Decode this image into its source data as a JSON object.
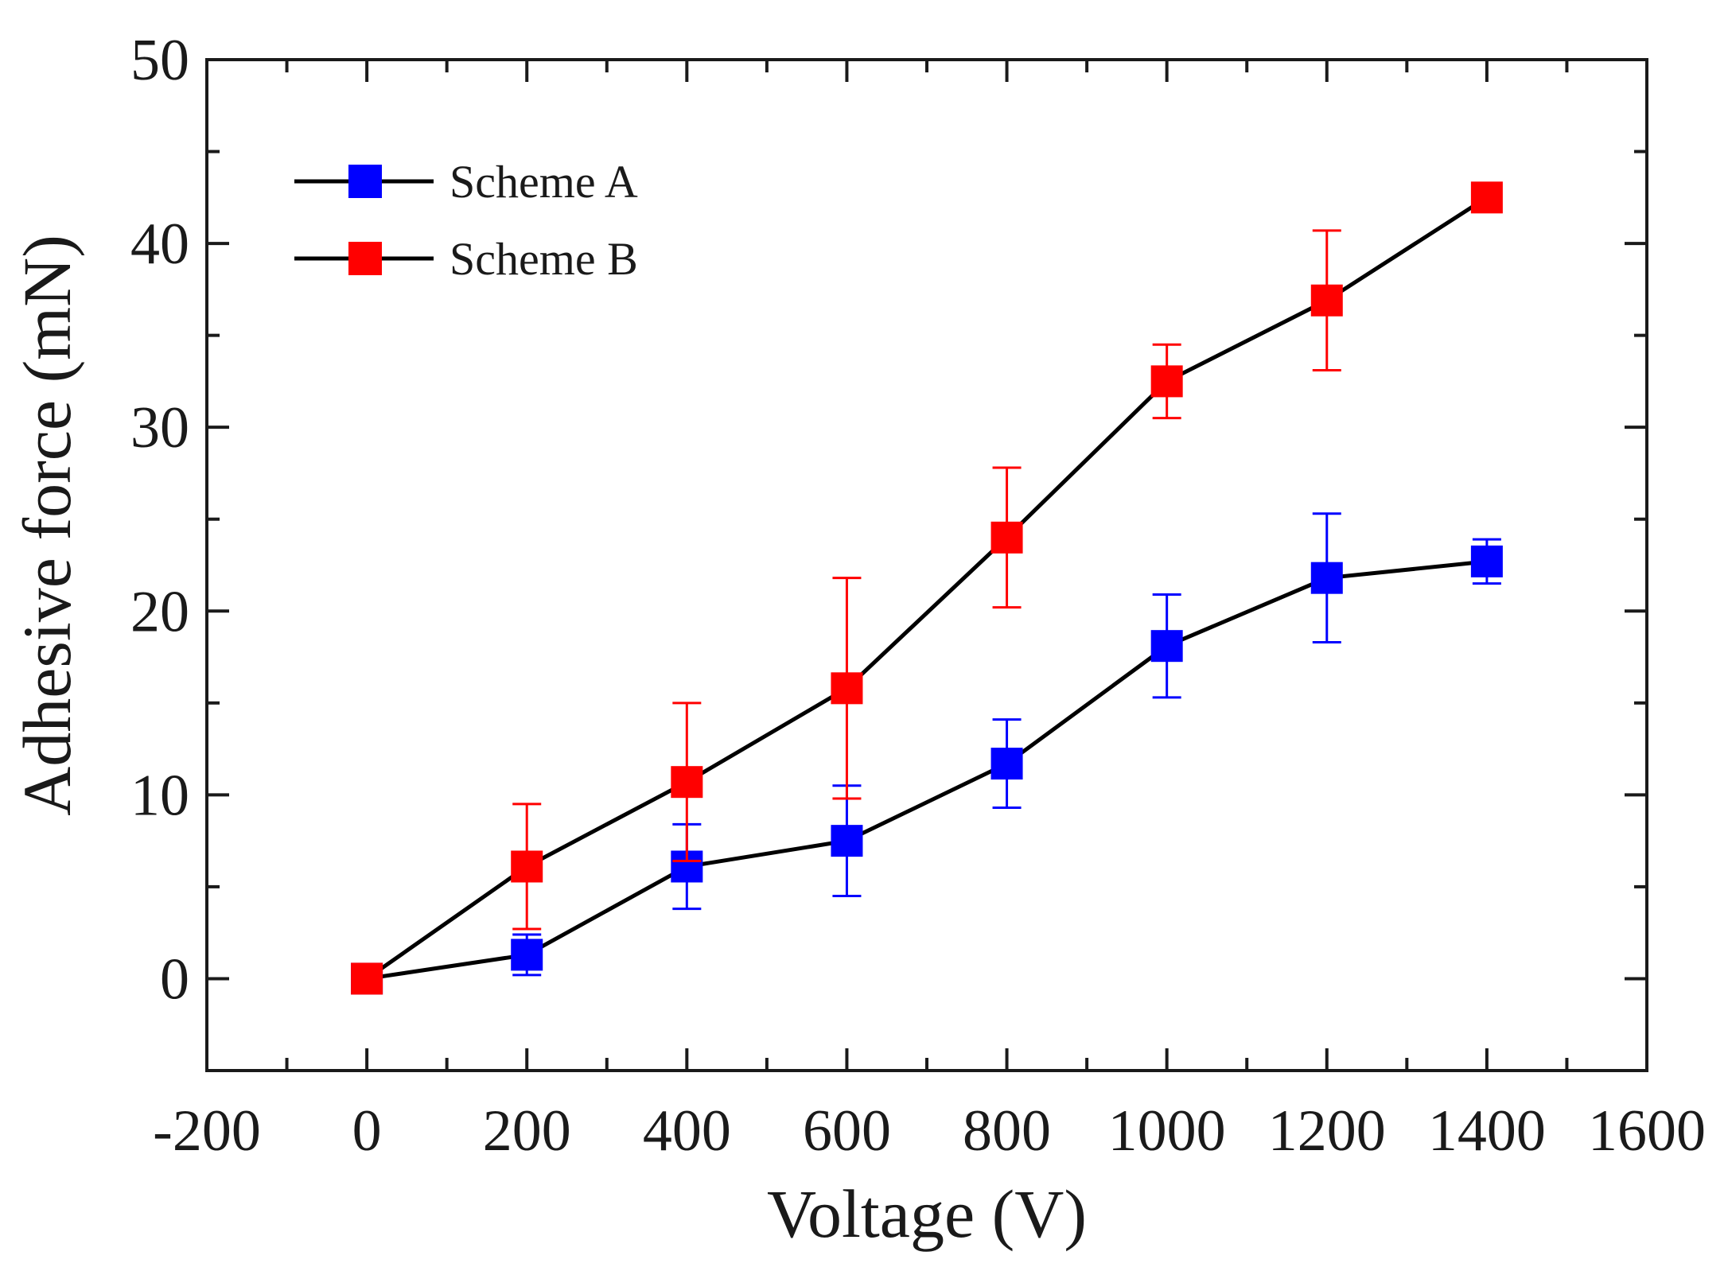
{
  "chart_data": {
    "type": "line",
    "xlabel": "Voltage (V)",
    "ylabel": "Adhesive force (mN)",
    "xlim": [
      -200,
      1600
    ],
    "ylim": [
      -5,
      50
    ],
    "x_ticks": [
      -200,
      0,
      200,
      400,
      600,
      800,
      1000,
      1200,
      1400,
      1600
    ],
    "y_ticks": [
      0,
      10,
      20,
      30,
      40,
      50
    ],
    "grid": false,
    "legend_position": "top-left",
    "series": [
      {
        "name": "Scheme A",
        "color": "#0000ff",
        "line_color": "#000000",
        "x": [
          0,
          200,
          400,
          600,
          800,
          1000,
          1200,
          1400
        ],
        "values": [
          0,
          1.3,
          6.1,
          7.5,
          11.7,
          18.1,
          21.8,
          22.7
        ],
        "errors": [
          0,
          1.1,
          2.3,
          3.0,
          2.4,
          2.8,
          3.5,
          1.2
        ]
      },
      {
        "name": "Scheme B",
        "color": "#ff0000",
        "line_color": "#000000",
        "x": [
          0,
          200,
          400,
          600,
          800,
          1000,
          1200,
          1400
        ],
        "values": [
          0,
          6.1,
          10.7,
          15.8,
          24.0,
          32.5,
          36.9,
          42.5
        ],
        "errors": [
          0,
          3.4,
          4.3,
          6.0,
          3.8,
          2.0,
          3.8,
          0
        ]
      }
    ]
  }
}
